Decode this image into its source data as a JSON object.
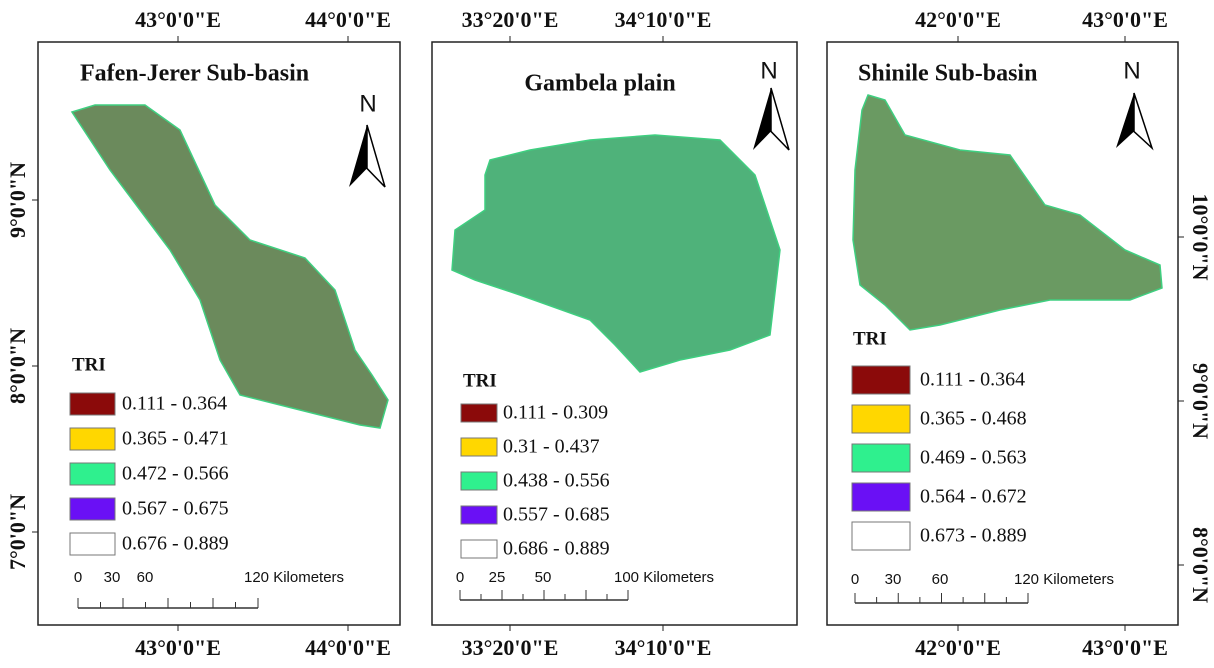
{
  "panels": [
    {
      "title": "Fafen-Jerer Sub-basin",
      "top_labels": [
        "43°0'0\"E",
        "44°0'0\"E"
      ],
      "bottom_labels": [
        "43°0'0\"E",
        "44°0'0\"E"
      ],
      "side_labels": [
        "9°0'0\"N",
        "8°0'0\"N",
        "7°0'0\"N"
      ],
      "north": "N",
      "legend": {
        "title": "TRI",
        "items": [
          "0.111 - 0.364",
          "0.365 - 0.471",
          "0.472 - 0.566",
          "0.567 - 0.675",
          "0.676 - 0.889"
        ]
      },
      "scale": [
        "0",
        "30",
        "60",
        "120 Kilometers"
      ]
    },
    {
      "title": "Gambela plain",
      "top_labels": [
        "33°20'0\"E",
        "34°10'0\"E"
      ],
      "bottom_labels": [
        "33°20'0\"E",
        "34°10'0\"E"
      ],
      "north": "N",
      "legend": {
        "title": "TRI",
        "items": [
          "0.111 - 0.309",
          "0.31 - 0.437",
          "0.438 - 0.556",
          "0.557 - 0.685",
          "0.686 - 0.889"
        ]
      },
      "scale": [
        "0",
        "25",
        "50",
        "100 Kilometers"
      ]
    },
    {
      "title": "Shinile Sub-basin",
      "top_labels": [
        "42°0'0\"E",
        "43°0'0\"E"
      ],
      "bottom_labels": [
        "42°0'0\"E",
        "43°0'0\"E"
      ],
      "side_labels": [
        "10°0'0\"N",
        "9°0'0\"N",
        "8°0'0\"N"
      ],
      "north": "N",
      "legend": {
        "title": "TRI",
        "items": [
          "0.111 - 0.364",
          "0.365 - 0.468",
          "0.469 - 0.563",
          "0.564 - 0.672",
          "0.673 - 0.889"
        ]
      },
      "scale": [
        "0",
        "30",
        "60",
        "120 Kilometers"
      ]
    }
  ]
}
